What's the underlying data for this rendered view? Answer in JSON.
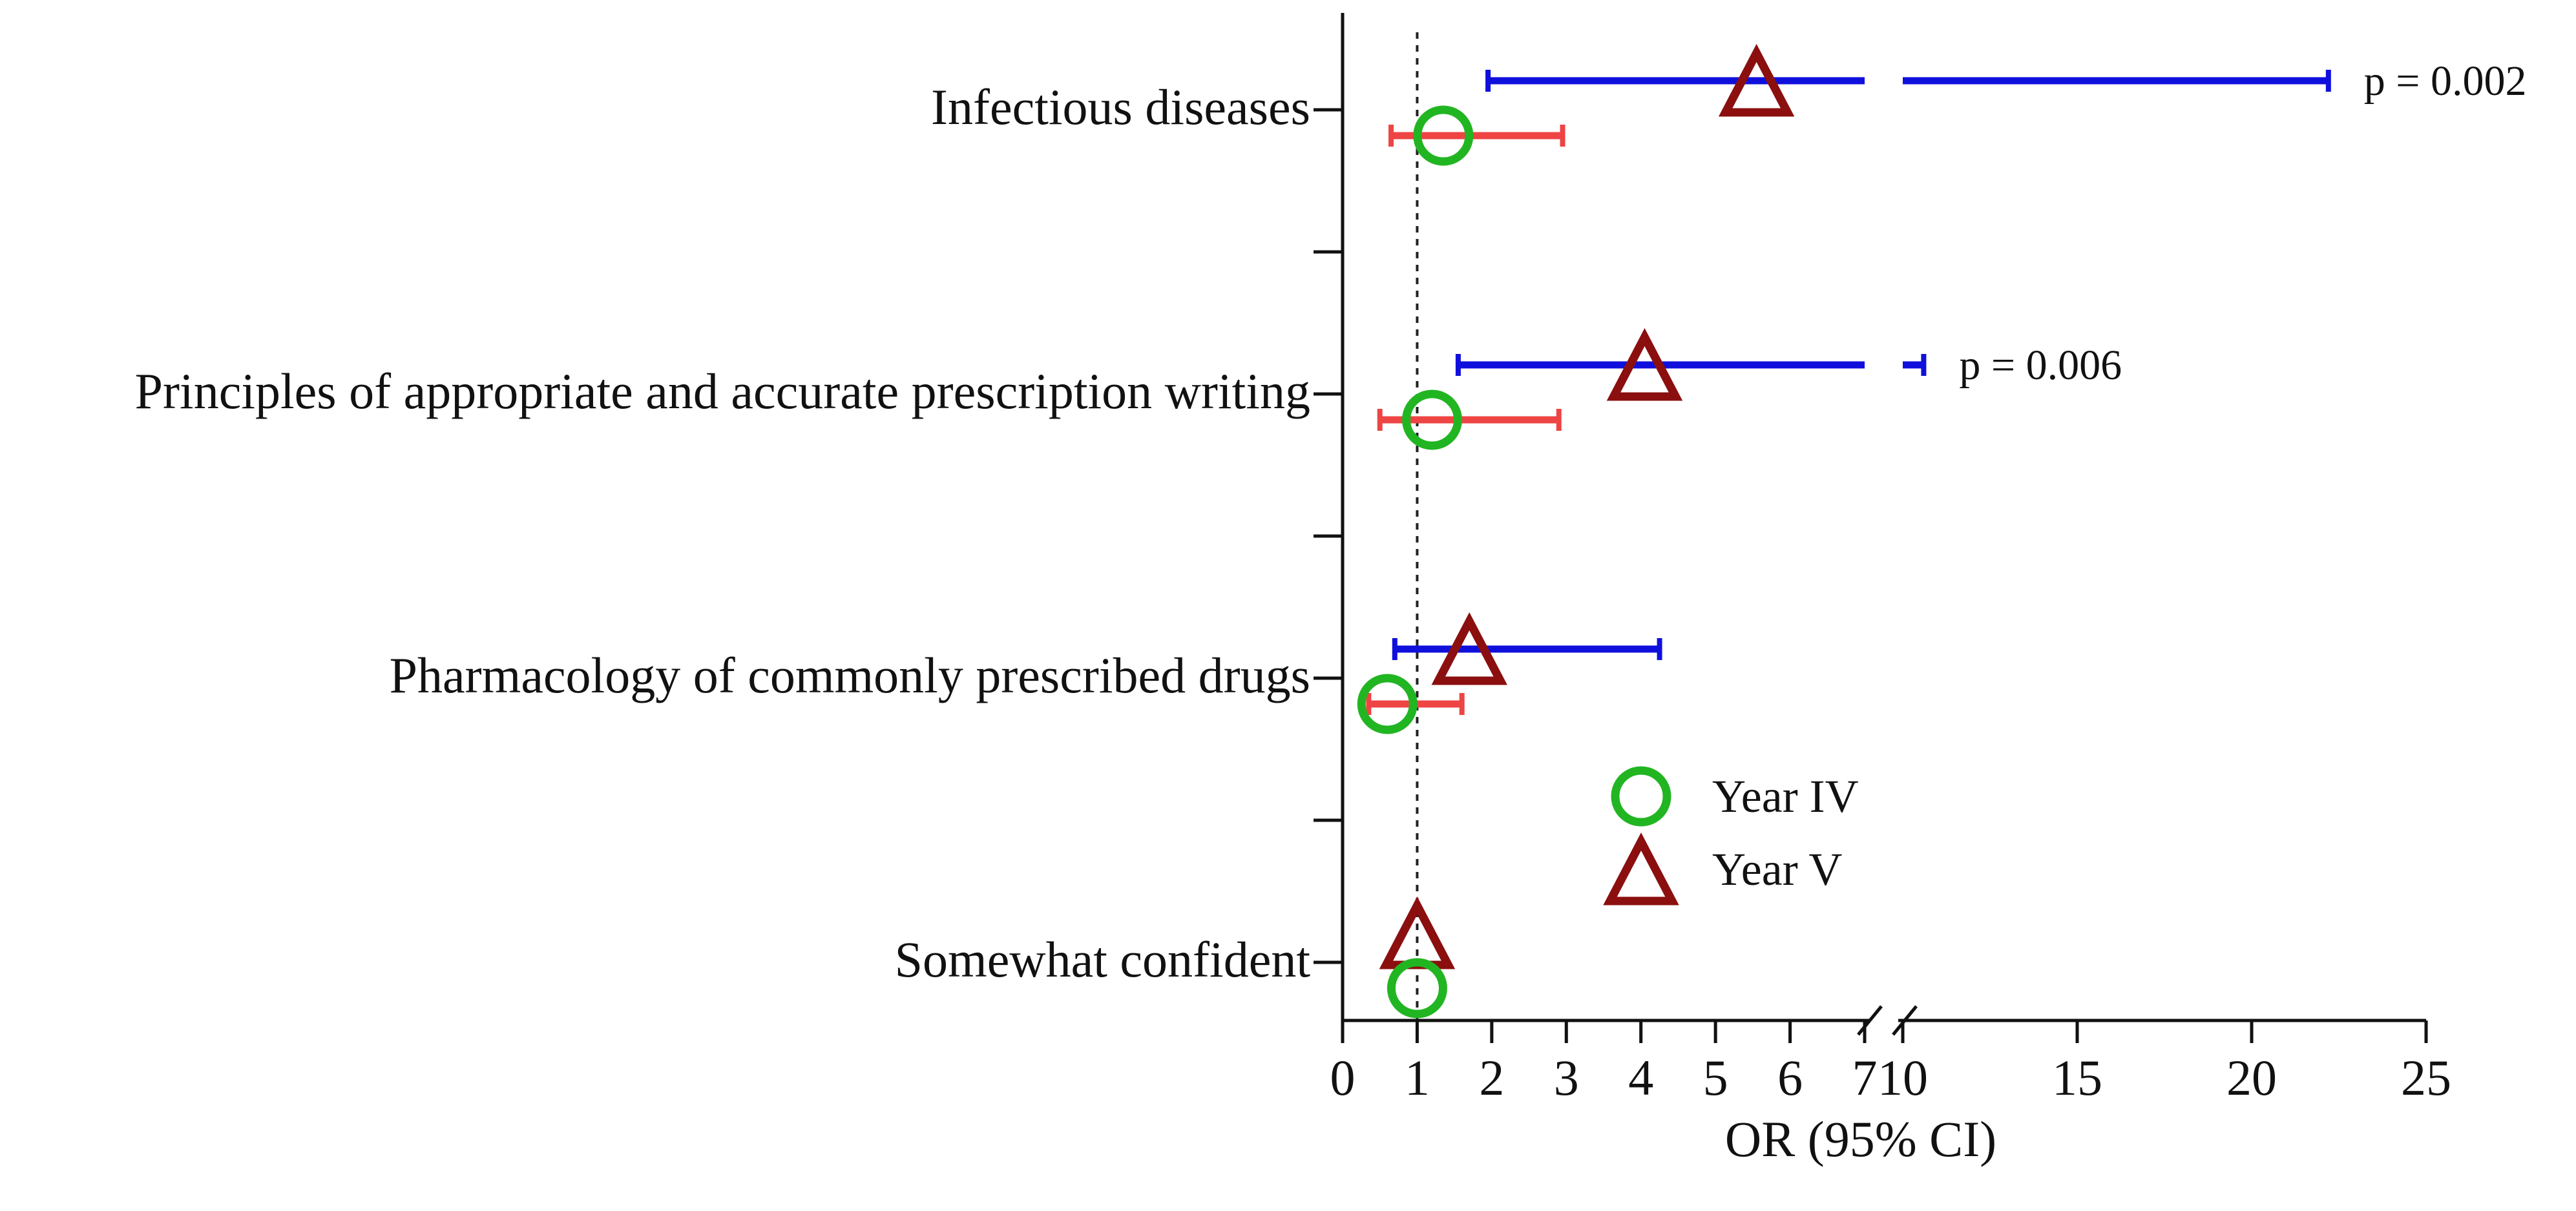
{
  "chart_data": {
    "type": "forest",
    "xlabel": "OR (95% CI)",
    "reference_line": 1,
    "x_axis": {
      "broken": true,
      "segments": [
        {
          "range": [
            0,
            7
          ],
          "ticks": [
            0,
            1,
            2,
            3,
            4,
            5,
            6,
            7
          ]
        },
        {
          "range": [
            10,
            25
          ],
          "ticks": [
            10,
            15,
            20,
            25
          ]
        }
      ],
      "tick_labels": [
        "0",
        "1",
        "2",
        "3",
        "4",
        "5",
        "6",
        "7",
        "10",
        "15",
        "20",
        "25"
      ]
    },
    "categories": [
      "Infectious diseases",
      "Principles of appropriate and accurate prescription writing",
      "Pharmacology of commonly prescribed drugs",
      "Somewhat confident"
    ],
    "series": [
      {
        "name": "Year IV",
        "marker": "circle",
        "marker_color": "#22b522",
        "ci_color": "#ee4444",
        "points": [
          {
            "category": "Infectious diseases",
            "or": 1.35,
            "ci": [
              0.65,
              2.95
            ]
          },
          {
            "category": "Principles of appropriate and accurate prescription writing",
            "or": 1.2,
            "ci": [
              0.5,
              2.9
            ]
          },
          {
            "category": "Pharmacology of commonly prescribed drugs",
            "or": 0.6,
            "ci": [
              0.35,
              1.6
            ]
          },
          {
            "category": "Somewhat confident",
            "or": 1.0,
            "ci": null
          }
        ]
      },
      {
        "name": "Year V",
        "marker": "triangle",
        "marker_color": "#8b0f0f",
        "ci_color": "#1010dd",
        "points": [
          {
            "category": "Infectious diseases",
            "or": 5.55,
            "ci": [
              1.95,
              22.2
            ],
            "p_label": "p = 0.002"
          },
          {
            "category": "Principles of appropriate and accurate prescription writing",
            "or": 4.05,
            "ci": [
              1.55,
              10.6
            ],
            "p_label": "p = 0.006"
          },
          {
            "category": "Pharmacology of commonly prescribed drugs",
            "or": 1.7,
            "ci": [
              0.7,
              4.25
            ]
          },
          {
            "category": "Somewhat confident",
            "or": 1.0,
            "ci": null
          }
        ]
      }
    ],
    "legend": {
      "placement": "lower-middle",
      "entries": [
        "Year IV",
        "Year V"
      ]
    }
  }
}
